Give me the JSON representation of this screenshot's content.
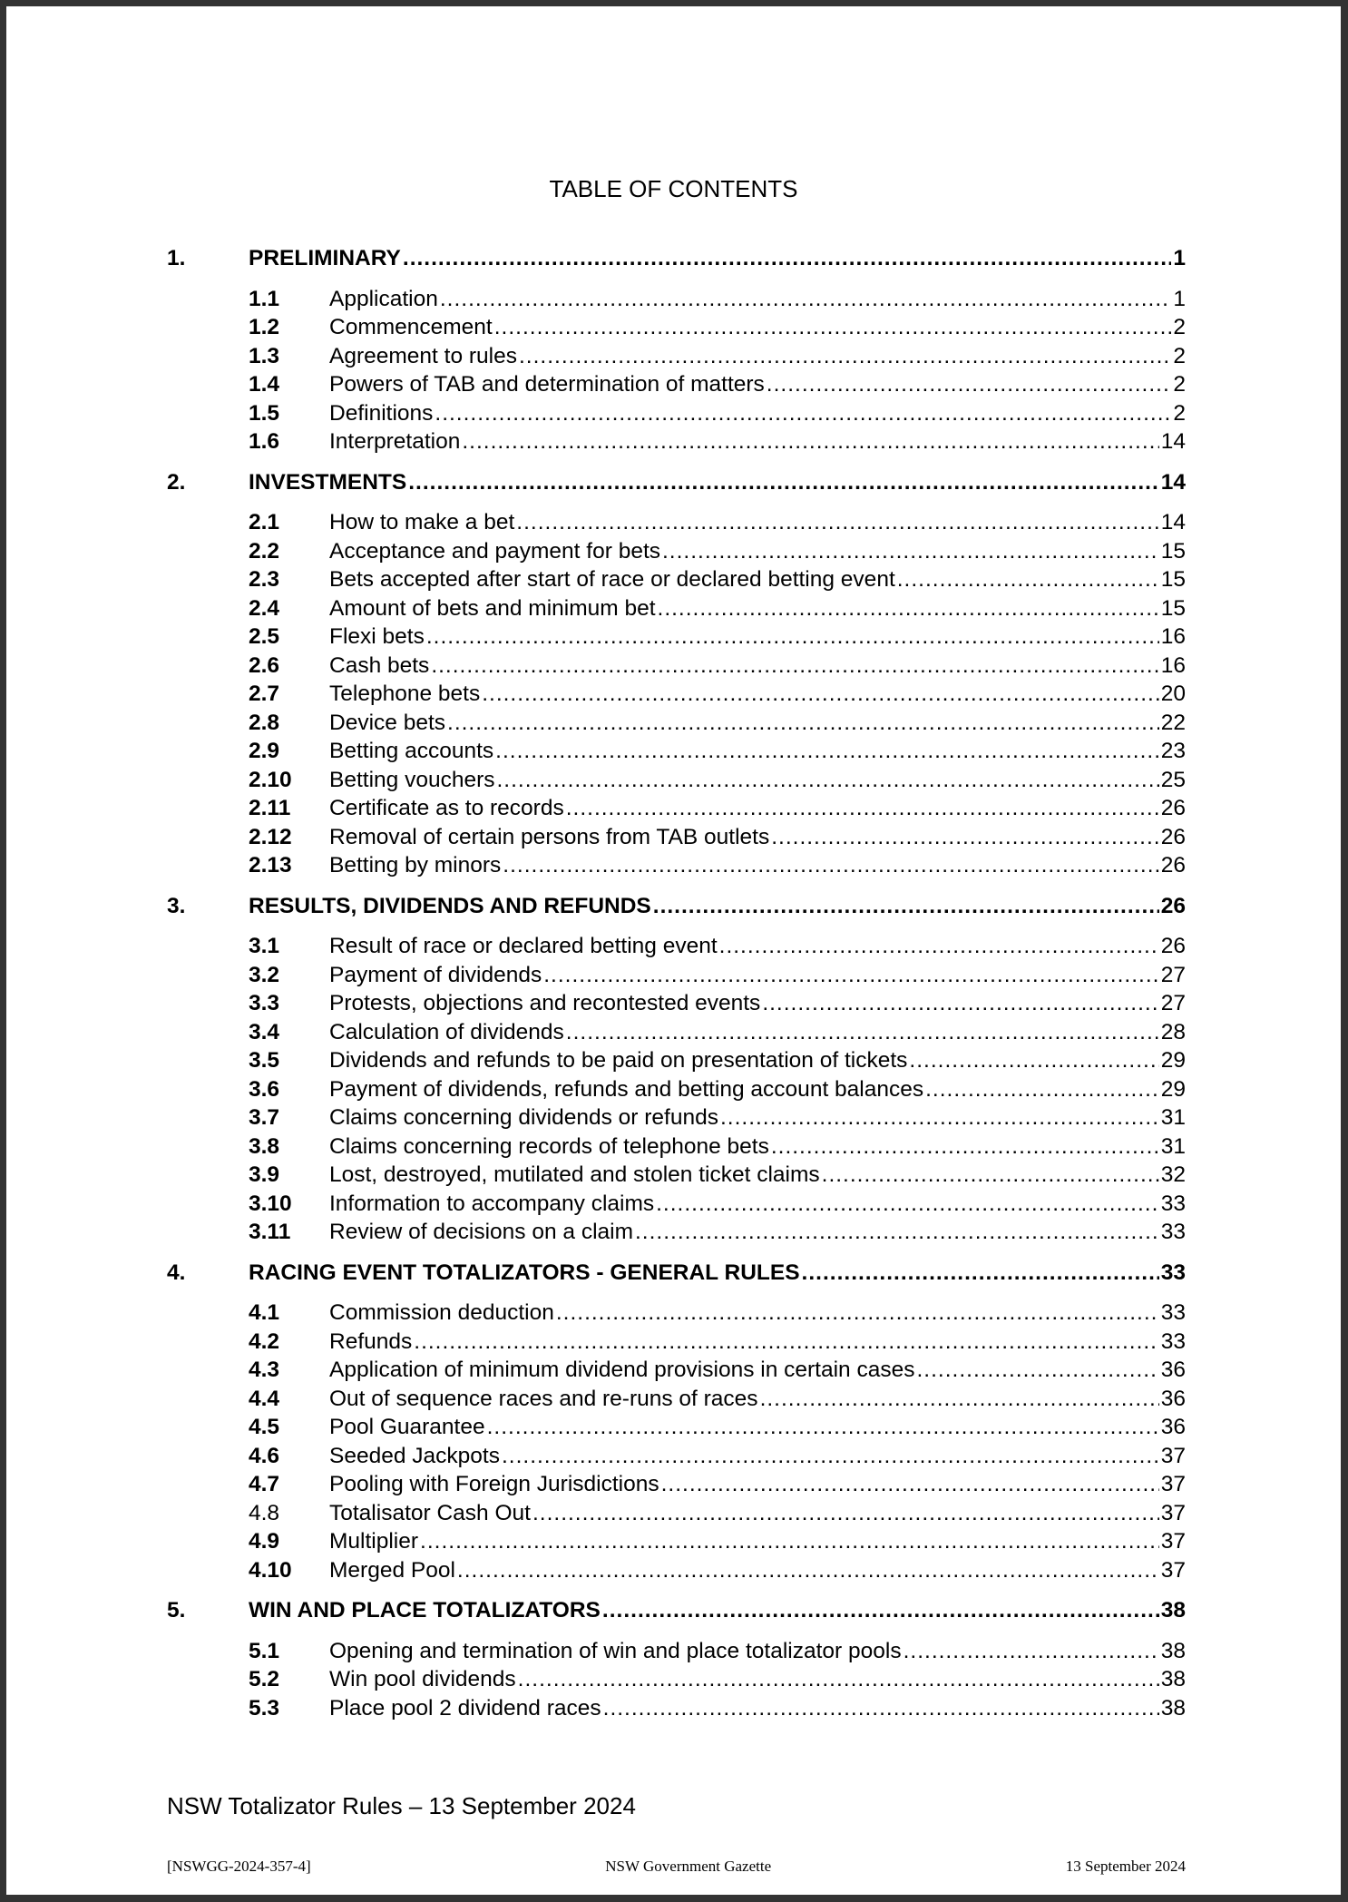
{
  "title": "TABLE OF CONTENTS",
  "sections": [
    {
      "num": "1.",
      "label": "PRELIMINARY",
      "page": "1",
      "items": [
        {
          "num": "1.1",
          "label": "Application",
          "page": "1"
        },
        {
          "num": "1.2",
          "label": "Commencement",
          "page": "2"
        },
        {
          "num": "1.3",
          "label": "Agreement to rules",
          "page": "2"
        },
        {
          "num": "1.4",
          "label": "Powers of TAB and determination of matters",
          "page": "2"
        },
        {
          "num": "1.5",
          "label": "Definitions",
          "page": "2"
        },
        {
          "num": "1.6",
          "label": "Interpretation",
          "page": "14"
        }
      ]
    },
    {
      "num": "2.",
      "label": "INVESTMENTS",
      "page": "14",
      "items": [
        {
          "num": "2.1",
          "label": "How to make a bet",
          "page": "14"
        },
        {
          "num": "2.2",
          "label": "Acceptance and payment for bets",
          "page": "15"
        },
        {
          "num": "2.3",
          "label": "Bets accepted after start of race or declared betting event",
          "page": "15"
        },
        {
          "num": "2.4",
          "label": "Amount of bets and minimum bet",
          "page": "15"
        },
        {
          "num": "2.5",
          "label": "Flexi bets",
          "page": "16"
        },
        {
          "num": "2.6",
          "label": "Cash bets",
          "page": "16"
        },
        {
          "num": "2.7",
          "label": "Telephone bets",
          "page": "20"
        },
        {
          "num": "2.8",
          "label": "Device bets",
          "page": "22"
        },
        {
          "num": "2.9",
          "label": "Betting accounts",
          "page": "23"
        },
        {
          "num": "2.10",
          "label": "Betting vouchers",
          "page": "25"
        },
        {
          "num": "2.11",
          "label": "Certificate as to records",
          "page": "26"
        },
        {
          "num": "2.12",
          "label": "Removal of certain persons from TAB outlets",
          "page": "26"
        },
        {
          "num": "2.13",
          "label": "Betting by minors",
          "page": "26"
        }
      ]
    },
    {
      "num": "3.",
      "label": "RESULTS, DIVIDENDS AND REFUNDS",
      "page": "26",
      "items": [
        {
          "num": "3.1",
          "label": "Result of race or declared betting event",
          "page": "26"
        },
        {
          "num": "3.2",
          "label": "Payment of dividends",
          "page": "27"
        },
        {
          "num": "3.3",
          "label": "Protests, objections and recontested events",
          "page": "27"
        },
        {
          "num": "3.4",
          "label": "Calculation of dividends",
          "page": "28"
        },
        {
          "num": "3.5",
          "label": "Dividends and refunds to be paid on presentation of tickets",
          "page": "29"
        },
        {
          "num": "3.6",
          "label": "Payment of dividends, refunds and betting account balances",
          "page": "29"
        },
        {
          "num": "3.7",
          "label": "Claims concerning dividends or refunds",
          "page": "31"
        },
        {
          "num": "3.8",
          "label": "Claims concerning records of telephone bets",
          "page": "31"
        },
        {
          "num": "3.9",
          "label": "Lost, destroyed, mutilated and stolen ticket claims",
          "page": "32"
        },
        {
          "num": "3.10",
          "label": "Information to accompany claims",
          "page": "33"
        },
        {
          "num": "3.11",
          "label": "Review of decisions on a claim",
          "page": "33"
        }
      ]
    },
    {
      "num": "4.",
      "label": "RACING EVENT TOTALIZATORS - GENERAL RULES",
      "page": "33",
      "items": [
        {
          "num": "4.1",
          "label": "Commission deduction",
          "page": "33"
        },
        {
          "num": "4.2",
          "label": "Refunds",
          "page": "33"
        },
        {
          "num": "4.3",
          "label": "Application of minimum dividend provisions in certain cases",
          "page": "36"
        },
        {
          "num": "4.4",
          "label": "Out of sequence races and re-runs of races",
          "page": "36"
        },
        {
          "num": "4.5",
          "label": "Pool Guarantee",
          "page": "36"
        },
        {
          "num": "4.6",
          "label": "Seeded Jackpots",
          "page": "37"
        },
        {
          "num": "4.7",
          "label": "Pooling with Foreign Jurisdictions",
          "page": "37"
        },
        {
          "num": "4.8",
          "label": "Totalisator Cash Out",
          "page": "37",
          "plain": true
        },
        {
          "num": "4.9",
          "label": "Multiplier",
          "page": "37"
        },
        {
          "num": "4.10",
          "label": "Merged Pool",
          "page": "37"
        }
      ]
    },
    {
      "num": "5.",
      "label": "WIN AND PLACE TOTALIZATORS",
      "page": "38",
      "items": [
        {
          "num": "5.1",
          "label": "Opening and termination of win and place totalizator pools",
          "page": "38"
        },
        {
          "num": "5.2",
          "label": "Win pool dividends",
          "page": "38"
        },
        {
          "num": "5.3",
          "label": "Place pool 2 dividend races",
          "page": "38"
        }
      ]
    }
  ],
  "footer": {
    "document_title": "NSW Totalizator Rules – 13 September 2024",
    "gazette_ref": "[NSWGG-2024-357-4]",
    "gazette_name": "NSW Government Gazette",
    "gazette_date": "13 September 2024"
  }
}
